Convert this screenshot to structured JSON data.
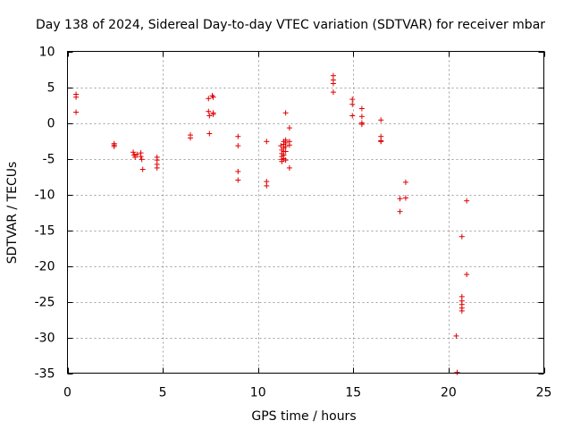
{
  "chart_data": {
    "type": "scatter",
    "title": "Day 138 of 2024, Sidereal Day-to-day VTEC variation (SDTVAR) for receiver mbar",
    "xlabel": "GPS time / hours",
    "ylabel": "SDTVAR / TECUs",
    "xlim": [
      0,
      25
    ],
    "ylim": [
      -35,
      10
    ],
    "xticks": [
      0,
      5,
      10,
      15,
      20,
      25
    ],
    "yticks": [
      10,
      5,
      0,
      -5,
      -10,
      -15,
      -20,
      -25,
      -30,
      -35
    ],
    "xtick_labels": [
      "0",
      "5",
      "10",
      "15",
      "20",
      "25"
    ],
    "ytick_labels": [
      "10",
      "5",
      "0",
      "-5",
      "-10",
      "-15",
      "-20",
      "-25",
      "-30",
      "-35"
    ],
    "grid": true,
    "marker": "+",
    "color": "#e00000",
    "series": [
      {
        "name": "mbar",
        "points": [
          [
            0.45,
            4.0
          ],
          [
            0.45,
            3.6
          ],
          [
            0.45,
            1.5
          ],
          [
            2.45,
            -2.9
          ],
          [
            2.45,
            -3.1
          ],
          [
            2.45,
            -3.3
          ],
          [
            3.45,
            -4.1
          ],
          [
            3.5,
            -4.5
          ],
          [
            3.55,
            -4.8
          ],
          [
            3.65,
            -4.4
          ],
          [
            3.85,
            -4.2
          ],
          [
            3.85,
            -4.7
          ],
          [
            3.9,
            -5.1
          ],
          [
            3.95,
            -6.5
          ],
          [
            4.7,
            -4.8
          ],
          [
            4.7,
            -5.2
          ],
          [
            4.7,
            -5.8
          ],
          [
            4.7,
            -6.3
          ],
          [
            6.45,
            -1.7
          ],
          [
            6.45,
            -2.1
          ],
          [
            7.4,
            3.4
          ],
          [
            7.4,
            1.6
          ],
          [
            7.45,
            1.0
          ],
          [
            7.45,
            -1.5
          ],
          [
            7.6,
            3.8
          ],
          [
            7.65,
            3.6
          ],
          [
            7.65,
            1.4
          ],
          [
            7.65,
            1.2
          ],
          [
            8.95,
            -1.9
          ],
          [
            8.95,
            -3.2
          ],
          [
            8.95,
            -6.8
          ],
          [
            8.95,
            -8.0
          ],
          [
            10.45,
            -2.6
          ],
          [
            10.45,
            -8.2
          ],
          [
            10.45,
            -8.8
          ],
          [
            11.2,
            -3.2
          ],
          [
            11.25,
            -3.8
          ],
          [
            11.25,
            -4.3
          ],
          [
            11.25,
            -4.7
          ],
          [
            11.25,
            -5.1
          ],
          [
            11.25,
            -5.4
          ],
          [
            11.35,
            -2.6
          ],
          [
            11.35,
            -3.0
          ],
          [
            11.35,
            -3.5
          ],
          [
            11.35,
            -4.0
          ],
          [
            11.35,
            -4.5
          ],
          [
            11.35,
            -5.0
          ],
          [
            11.45,
            -2.4
          ],
          [
            11.45,
            -2.8
          ],
          [
            11.45,
            -3.3
          ],
          [
            11.45,
            -4.0
          ],
          [
            11.45,
            -5.2
          ],
          [
            11.45,
            1.4
          ],
          [
            11.65,
            -0.7
          ],
          [
            11.65,
            -2.6
          ],
          [
            11.65,
            -3.1
          ],
          [
            11.65,
            -6.3
          ],
          [
            13.95,
            6.6
          ],
          [
            13.95,
            6.0
          ],
          [
            13.95,
            5.5
          ],
          [
            13.95,
            4.3
          ],
          [
            14.95,
            3.3
          ],
          [
            14.95,
            2.6
          ],
          [
            14.95,
            1.0
          ],
          [
            15.45,
            2.0
          ],
          [
            15.45,
            0.9
          ],
          [
            15.45,
            0.0
          ],
          [
            15.45,
            -0.2
          ],
          [
            16.45,
            0.4
          ],
          [
            16.45,
            -1.9
          ],
          [
            16.45,
            -2.5
          ],
          [
            16.45,
            -2.6
          ],
          [
            17.45,
            -10.6
          ],
          [
            17.45,
            -12.4
          ],
          [
            17.75,
            -8.3
          ],
          [
            17.75,
            -10.5
          ],
          [
            20.4,
            -29.8
          ],
          [
            20.45,
            -34.9
          ],
          [
            20.7,
            -15.9
          ],
          [
            20.7,
            -24.3
          ],
          [
            20.7,
            -24.9
          ],
          [
            20.7,
            -25.4
          ],
          [
            20.7,
            -25.9
          ],
          [
            20.7,
            -26.3
          ],
          [
            20.95,
            -10.9
          ],
          [
            20.95,
            -21.2
          ]
        ]
      }
    ]
  }
}
